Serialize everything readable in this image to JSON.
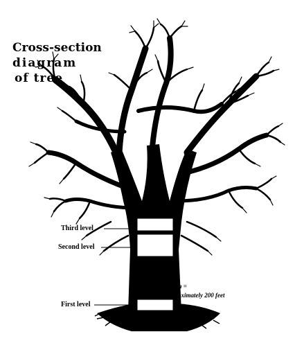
{
  "title": {
    "line1": "Cross-section",
    "line2": "diagram",
    "line3": "of tree"
  },
  "levels": {
    "third": "Third level",
    "second": "Second level",
    "first": "First level"
  },
  "scale": {
    "line1": "Scale: 1 inch =",
    "line2": "approximately 200 feet"
  },
  "colors": {
    "ink": "#000000",
    "paper": "#ffffff"
  }
}
